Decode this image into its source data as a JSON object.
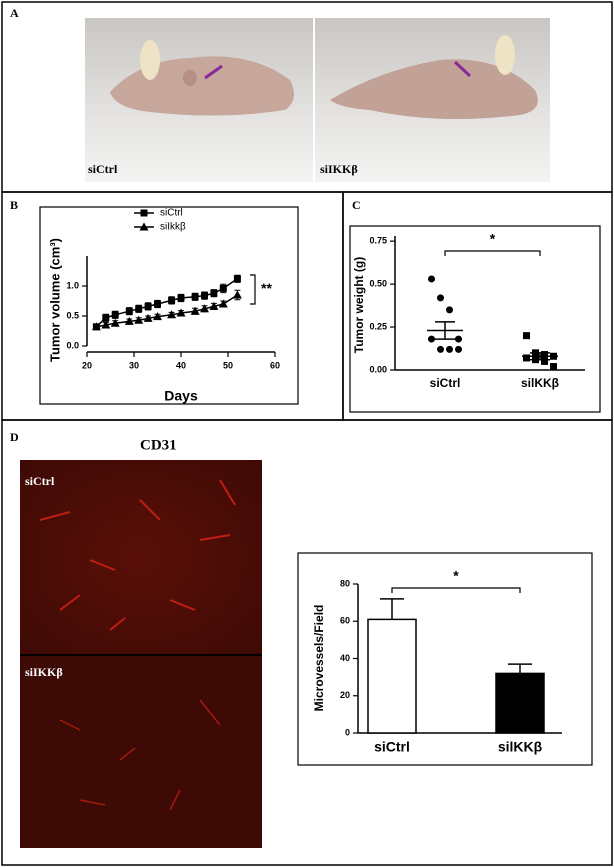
{
  "panel_a": {
    "label": "A",
    "photos": [
      "siCtrl",
      "siIKKβ"
    ]
  },
  "panel_b": {
    "label": "B"
  },
  "panel_c": {
    "label": "C"
  },
  "panel_d": {
    "label": "D",
    "stain": "CD31",
    "photos": [
      "siCtrl",
      "siIKKβ"
    ]
  },
  "chart_data": [
    {
      "type": "line",
      "ylabel": "Tumor volume (cm³)",
      "xlabel": "Days",
      "x": [
        22,
        24,
        26,
        29,
        31,
        33,
        35,
        38,
        40,
        43,
        45,
        47,
        49,
        52
      ],
      "series": [
        {
          "name": "siCtrl",
          "color": "#000000",
          "marker": "square",
          "values": [
            0.32,
            0.47,
            0.52,
            0.58,
            0.62,
            0.66,
            0.7,
            0.76,
            0.8,
            0.82,
            0.84,
            0.88,
            0.96,
            1.12
          ],
          "errors": [
            0.04,
            0.06,
            0.06,
            0.06,
            0.06,
            0.06,
            0.06,
            0.06,
            0.06,
            0.06,
            0.06,
            0.06,
            0.07,
            0.06
          ]
        },
        {
          "name": "siIkkβ",
          "color": "#000000",
          "marker": "triangle",
          "values": [
            0.32,
            0.35,
            0.38,
            0.41,
            0.43,
            0.46,
            0.49,
            0.52,
            0.55,
            0.58,
            0.62,
            0.66,
            0.7,
            0.85
          ],
          "errors": [
            0.03,
            0.04,
            0.04,
            0.04,
            0.04,
            0.04,
            0.04,
            0.04,
            0.04,
            0.05,
            0.05,
            0.05,
            0.05,
            0.08
          ]
        }
      ],
      "xlim": [
        20,
        60
      ],
      "xticks": [
        20,
        30,
        40,
        50,
        60
      ],
      "ylim": [
        0,
        1.5
      ],
      "yticks": [
        {
          "value": 0,
          "label": "0.0"
        },
        {
          "value": 0.5,
          "label": "0.5"
        },
        {
          "value": 1,
          "label": "1.0"
        }
      ],
      "annotation": "**"
    },
    {
      "type": "scatter",
      "ylabel": "Tumor weight (g)",
      "categories": [
        "siCtrl",
        "silKKβ"
      ],
      "color": "#000000",
      "groups": [
        {
          "marker": "circle",
          "values": [
            0.53,
            0.42,
            0.35,
            0.18,
            0.18,
            0.12,
            0.12,
            0.12
          ],
          "mean": 0.23,
          "sem": 0.05
        },
        {
          "marker": "square",
          "values": [
            0.2,
            0.1,
            0.09,
            0.08,
            0.07,
            0.06,
            0.05,
            0.02
          ],
          "mean": 0.08,
          "sem": 0.02
        }
      ],
      "ylim": [
        0,
        0.78
      ],
      "yticks": [
        {
          "value": 0,
          "label": "0.00"
        },
        {
          "value": 0.25,
          "label": "0.25"
        },
        {
          "value": 0.5,
          "label": "0.50"
        },
        {
          "value": 0.75,
          "label": "0.75"
        }
      ],
      "annotation": "*"
    },
    {
      "type": "bar",
      "ylabel": "Microvessels/Field",
      "categories": [
        "siCtrl",
        "silKKβ"
      ],
      "values": [
        61,
        32
      ],
      "errors": [
        11,
        5
      ],
      "colors": [
        "#ffffff",
        "#000000"
      ],
      "ylim": [
        0,
        80
      ],
      "yticks": [
        0,
        20,
        40,
        60,
        80
      ],
      "annotation": "*"
    }
  ]
}
